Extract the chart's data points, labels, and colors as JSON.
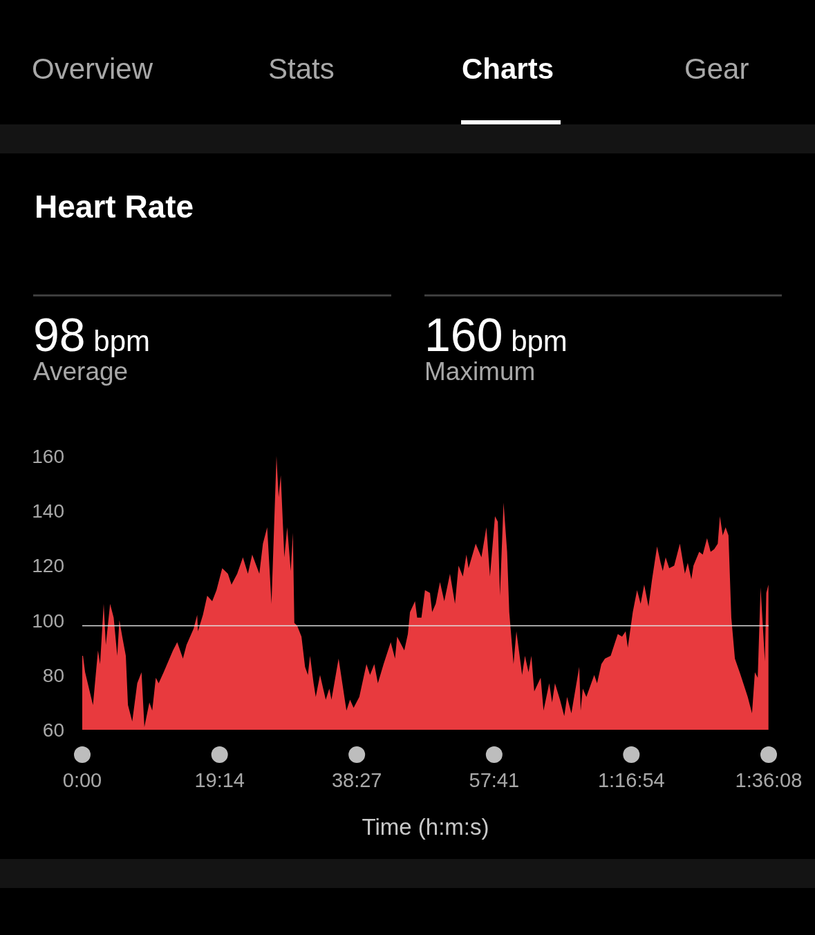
{
  "chart_data": {
    "type": "area",
    "title": "Heart Rate",
    "xlabel": "Time (h:m:s)",
    "annotations": [
      "Overview",
      "Stats",
      "Charts",
      "Gear",
      "98 bpm",
      "Average",
      "160 bpm",
      "Maximum"
    ],
    "xlim": [
      0,
      96.133
    ],
    "xticks": [
      {
        "value": 0,
        "label": "0:00"
      },
      {
        "value": 19.233,
        "label": "19:14"
      },
      {
        "value": 38.45,
        "label": "38:27"
      },
      {
        "value": 57.683,
        "label": "57:41"
      },
      {
        "value": 76.9,
        "label": "1:16:54"
      },
      {
        "value": 96.133,
        "label": "1:36:08"
      }
    ],
    "ylim": [
      60,
      160
    ],
    "yticks": [
      60,
      80,
      100,
      120,
      140,
      160
    ],
    "ref_lines": [
      {
        "axis": "y",
        "value": 98,
        "color": "#e0e0e0"
      }
    ],
    "series": [
      {
        "color": "#e83a3e",
        "x": [
          0,
          0.1,
          0.4,
          1.5,
          2.2,
          2.5,
          3.0,
          3.3,
          3.9,
          4.4,
          4.9,
          5.2,
          5.6,
          6.1,
          6.4,
          7.0,
          7.7,
          8.3,
          8.7,
          9.4,
          9.8,
          10.3,
          10.7,
          11.4,
          12.7,
          13.3,
          14.1,
          14.6,
          15.6,
          16.1,
          16.2,
          16.9,
          17.5,
          18.2,
          18.8,
          19.6,
          20.4,
          20.9,
          21.7,
          22.5,
          23.2,
          23.8,
          24.8,
          25.3,
          25.9,
          26.5,
          27.2,
          27.5,
          27.8,
          28.3,
          28.7,
          29.2,
          29.5,
          29.7,
          30.1,
          30.7,
          31.2,
          31.6,
          31.9,
          32.4,
          32.7,
          33.3,
          34.1,
          34.6,
          34.9,
          35.9,
          37.0,
          37.5,
          38.0,
          38.8,
          39.8,
          40.3,
          40.9,
          41.4,
          42.2,
          43.2,
          43.8,
          44.1,
          45.1,
          45.6,
          45.9,
          46.6,
          46.9,
          47.5,
          48.0,
          48.7,
          49.0,
          49.5,
          50.1,
          50.7,
          51.5,
          52.2,
          52.7,
          53.3,
          53.8,
          54.1,
          55.1,
          55.9,
          56.6,
          57.1,
          57.8,
          58.2,
          58.5,
          59.0,
          59.5,
          59.8,
          60.4,
          60.8,
          61.6,
          62.0,
          62.5,
          62.9,
          63.3,
          64.2,
          64.6,
          65.4,
          65.8,
          66.2,
          66.9,
          67.5,
          67.9,
          68.5,
          69.6,
          69.8,
          70.1,
          70.6,
          71.7,
          72.1,
          72.7,
          73.2,
          74.0,
          75.0,
          75.6,
          76.1,
          76.4,
          77.1,
          77.7,
          78.2,
          78.7,
          79.3,
          79.8,
          80.5,
          81.0,
          81.3,
          81.7,
          82.2,
          82.9,
          83.7,
          84.4,
          84.8,
          85.3,
          85.6,
          86.4,
          86.9,
          87.5,
          88.0,
          88.5,
          89.0,
          89.3,
          89.7,
          90.1,
          90.5,
          90.9,
          91.4,
          92.2,
          93.2,
          93.8,
          94.2,
          94.6,
          95.0,
          95.6,
          95.8,
          96.1
        ],
        "values": [
          87,
          87,
          81,
          69,
          89,
          84,
          106,
          91,
          106,
          101,
          87,
          100,
          94,
          87,
          69,
          63,
          77,
          81,
          61,
          70,
          67,
          79,
          77,
          81,
          89,
          92,
          86,
          91,
          97,
          102,
          96,
          102,
          109,
          107,
          111,
          119,
          117,
          113,
          117,
          123,
          117,
          124,
          117,
          128,
          134,
          106,
          160,
          145,
          153,
          123,
          134,
          118,
          132,
          99,
          98,
          94,
          83,
          80,
          87,
          77,
          72,
          80,
          71,
          75,
          71,
          86,
          67,
          71,
          68,
          72,
          84,
          80,
          84,
          77,
          84,
          92,
          86,
          94,
          89,
          95,
          103,
          107,
          101,
          101,
          111,
          110,
          103,
          106,
          114,
          107,
          117,
          106,
          120,
          116,
          124,
          119,
          128,
          123,
          134,
          116,
          138,
          136,
          109,
          143,
          125,
          103,
          84,
          96,
          80,
          87,
          81,
          87,
          74,
          79,
          67,
          77,
          70,
          77,
          71,
          65,
          72,
          66,
          83,
          67,
          75,
          72,
          80,
          77,
          84,
          86,
          87,
          95,
          94,
          96,
          90,
          103,
          111,
          106,
          113,
          105,
          115,
          127,
          121,
          118,
          123,
          119,
          120,
          128,
          117,
          121,
          115,
          120,
          125,
          124,
          130,
          125,
          126,
          128,
          138,
          131,
          134,
          131,
          101,
          86,
          80,
          72,
          66,
          81,
          79,
          112,
          85,
          110,
          113
        ]
      }
    ]
  }
}
